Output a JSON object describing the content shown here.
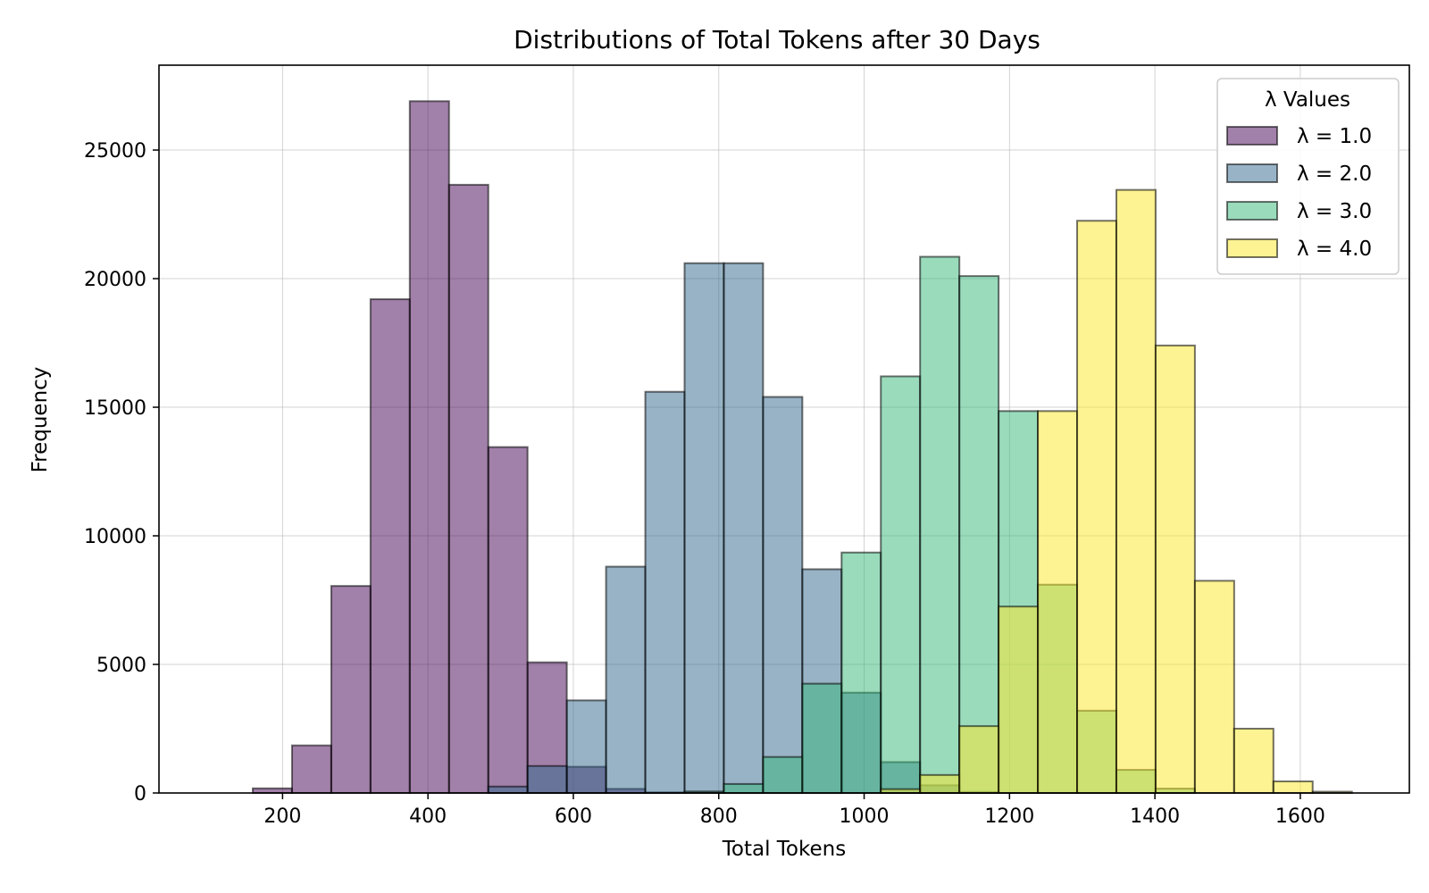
{
  "chart_data": {
    "type": "bar",
    "title": "Distributions of Total Tokens after 30 Days",
    "xlabel": "Total Tokens",
    "ylabel": "Frequency",
    "xlim": [
      30,
      1750
    ],
    "ylim": [
      0,
      28300
    ],
    "xticks": [
      200,
      400,
      600,
      800,
      1000,
      1200,
      1400,
      1600
    ],
    "yticks": [
      0,
      5000,
      10000,
      15000,
      20000,
      25000
    ],
    "grid": true,
    "bar_opacity": 0.5,
    "legend": {
      "title": "λ Values",
      "position": "top-right"
    },
    "series": [
      {
        "name": "λ = 1.0",
        "color": "#440154",
        "bins": [
          [
            159,
            213,
            180
          ],
          [
            213,
            267,
            1850
          ],
          [
            267,
            321,
            8050
          ],
          [
            321,
            375,
            19200
          ],
          [
            375,
            429,
            26900
          ],
          [
            429,
            483,
            23650
          ],
          [
            483,
            537,
            13450
          ],
          [
            537,
            591,
            5080
          ],
          [
            591,
            645,
            1020
          ],
          [
            645,
            699,
            160
          ],
          [
            699,
            753,
            25
          ]
        ]
      },
      {
        "name": "λ = 2.0",
        "color": "#31688e",
        "bins": [
          [
            483,
            537,
            250
          ],
          [
            537,
            591,
            1050
          ],
          [
            591,
            645,
            3600
          ],
          [
            645,
            699,
            8800
          ],
          [
            699,
            753,
            15600
          ],
          [
            753,
            807,
            20600
          ],
          [
            807,
            861,
            20600
          ],
          [
            861,
            915,
            15400
          ],
          [
            915,
            969,
            8700
          ],
          [
            969,
            1023,
            3900
          ],
          [
            1023,
            1077,
            1200
          ],
          [
            1077,
            1131,
            300
          ],
          [
            1131,
            1185,
            40
          ]
        ]
      },
      {
        "name": "λ = 3.0",
        "color": "#35b779",
        "bins": [
          [
            753,
            807,
            60
          ],
          [
            807,
            861,
            350
          ],
          [
            861,
            915,
            1400
          ],
          [
            915,
            969,
            4250
          ],
          [
            969,
            1023,
            9350
          ],
          [
            1023,
            1077,
            16200
          ],
          [
            1077,
            1131,
            20850
          ],
          [
            1131,
            1185,
            20100
          ],
          [
            1185,
            1239,
            14850
          ],
          [
            1239,
            1293,
            8100
          ],
          [
            1293,
            1347,
            3200
          ],
          [
            1347,
            1401,
            900
          ],
          [
            1401,
            1455,
            170
          ]
        ]
      },
      {
        "name": "λ = 4.0",
        "color": "#fde725",
        "bins": [
          [
            1023,
            1077,
            150
          ],
          [
            1077,
            1131,
            700
          ],
          [
            1131,
            1185,
            2600
          ],
          [
            1185,
            1239,
            7250
          ],
          [
            1239,
            1293,
            14850
          ],
          [
            1293,
            1347,
            22250
          ],
          [
            1347,
            1401,
            23450
          ],
          [
            1401,
            1455,
            17400
          ],
          [
            1455,
            1509,
            8250
          ],
          [
            1509,
            1563,
            2500
          ],
          [
            1563,
            1617,
            450
          ],
          [
            1617,
            1671,
            50
          ]
        ]
      }
    ]
  }
}
